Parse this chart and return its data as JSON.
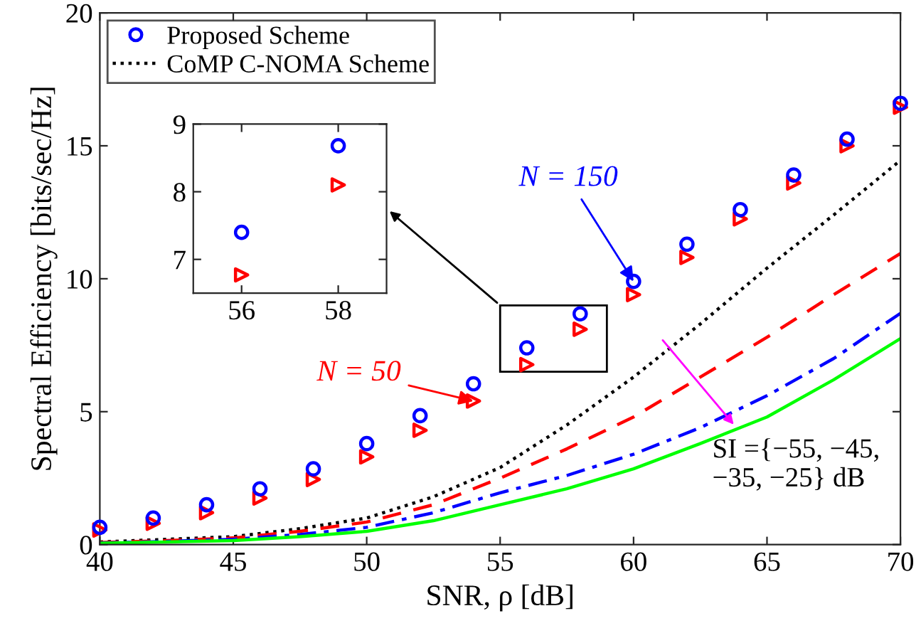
{
  "chart_data": [
    {
      "type": "scatter",
      "xlabel": "SNR, ρ [dB]",
      "ylabel": "Spectral Efficiency [bits/sec/Hz]",
      "xlim": [
        40,
        70
      ],
      "ylim": [
        0,
        20
      ],
      "xticks": [
        40,
        45,
        50,
        55,
        60,
        65,
        70
      ],
      "yticks": [
        0,
        5,
        10,
        15,
        20
      ],
      "grid": false,
      "legend": "top left",
      "series": [
        {
          "name": "Proposed Scheme",
          "marker": "circle",
          "color": "#0000ff",
          "x": [
            40,
            42,
            44,
            46,
            48,
            50,
            52,
            54,
            56,
            58,
            60,
            62,
            64,
            66,
            68,
            70
          ],
          "values": [
            0.65,
            1.0,
            1.5,
            2.1,
            2.85,
            3.8,
            4.85,
            6.05,
            7.4,
            8.68,
            9.9,
            11.3,
            12.6,
            13.9,
            15.25,
            16.6
          ]
        },
        {
          "marker": "triangle",
          "color": "#ff0000",
          "x": [
            40,
            42,
            44,
            46,
            48,
            50,
            52,
            54,
            56,
            58,
            60,
            62,
            64,
            66,
            68,
            70
          ],
          "values": [
            0.55,
            0.8,
            1.2,
            1.75,
            2.45,
            3.3,
            4.3,
            5.4,
            6.77,
            8.1,
            9.4,
            10.8,
            12.25,
            13.6,
            15.0,
            16.45
          ]
        },
        {
          "name": "CoMP C-NOMA Scheme",
          "type": "line",
          "line_style": "dotted",
          "color": "#000000",
          "x": [
            40,
            42.5,
            45,
            47.5,
            50,
            52.5,
            55,
            57.5,
            60,
            62.5,
            65,
            67.5,
            70
          ],
          "values": [
            0.1,
            0.2,
            0.3,
            0.6,
            1.0,
            1.8,
            2.9,
            4.5,
            6.3,
            8.3,
            10.4,
            12.4,
            14.45
          ]
        },
        {
          "type": "line",
          "line_style": "dashed",
          "color": "#ff0000",
          "x": [
            40,
            42.5,
            45,
            47.5,
            50,
            52.5,
            55,
            57.5,
            60,
            62.5,
            65,
            67.5,
            70
          ],
          "values": [
            0.08,
            0.15,
            0.25,
            0.5,
            0.85,
            1.5,
            2.5,
            3.6,
            4.8,
            6.3,
            7.8,
            9.4,
            10.95
          ]
        },
        {
          "type": "line",
          "line_style": "dashdot",
          "color": "#0000ff",
          "x": [
            40,
            42.5,
            45,
            47.5,
            50,
            52.5,
            55,
            57.5,
            60,
            62.5,
            65,
            67.5,
            70
          ],
          "values": [
            0.06,
            0.12,
            0.2,
            0.38,
            0.65,
            1.2,
            1.95,
            2.6,
            3.4,
            4.4,
            5.6,
            7.0,
            8.7
          ]
        },
        {
          "type": "line",
          "line_style": "solid",
          "color": "#00ff00",
          "x": [
            40,
            42.5,
            45,
            47.5,
            50,
            52.5,
            55,
            57.5,
            60,
            62.5,
            65,
            67.5,
            70
          ],
          "values": [
            0.05,
            0.1,
            0.15,
            0.3,
            0.5,
            0.9,
            1.5,
            2.1,
            2.85,
            3.8,
            4.8,
            6.2,
            7.75
          ]
        }
      ],
      "annotations": [
        {
          "text": "N = 150",
          "x": 60,
          "y": 9.9
        },
        {
          "text": "N = 50",
          "x": 54,
          "y": 5.4
        },
        "SI ={−55, −45,\n−35, −25} dB"
      ]
    },
    {
      "type": "scatter",
      "xlim": [
        55,
        59
      ],
      "ylim": [
        6.5,
        9
      ],
      "xticks": [
        56,
        58
      ],
      "yticks": [
        7,
        8,
        9
      ],
      "grid": false,
      "series": [
        {
          "marker": "circle",
          "color": "#0000ff",
          "x": [
            56,
            58
          ],
          "values": [
            7.4,
            8.68
          ]
        },
        {
          "marker": "triangle",
          "color": "#ff0000",
          "x": [
            56,
            58
          ],
          "values": [
            6.77,
            8.1
          ]
        }
      ]
    }
  ]
}
